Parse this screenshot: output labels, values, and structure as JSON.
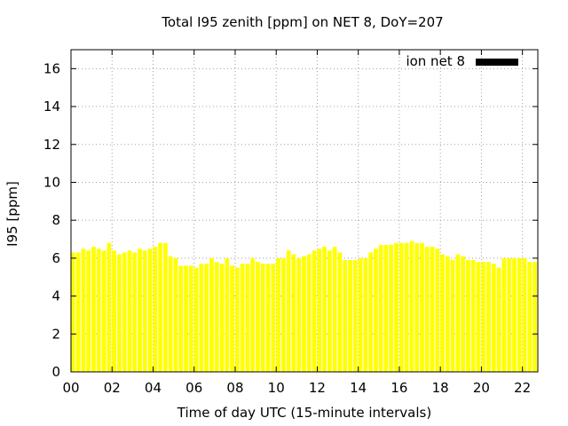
{
  "chart_data": {
    "type": "bar",
    "title": "Total I95 zenith [ppm] on NET 8, DoY=207",
    "xlabel": "Time of day UTC (15-minute intervals)",
    "ylabel": "I95 [ppm]",
    "xlim": [
      0,
      22.75
    ],
    "ylim": [
      0,
      17
    ],
    "xticks": [
      "00",
      "02",
      "04",
      "06",
      "08",
      "10",
      "12",
      "14",
      "16",
      "18",
      "20",
      "22"
    ],
    "yticks": [
      "0",
      "2",
      "4",
      "6",
      "8",
      "10",
      "12",
      "14",
      "16"
    ],
    "grid": true,
    "legend_position": "top-right",
    "bar_color": "#ffff00",
    "series": [
      {
        "name": "ion net 8",
        "legend_color": "#000000",
        "x": [
          0,
          0.25,
          0.5,
          0.75,
          1,
          1.25,
          1.5,
          1.75,
          2,
          2.25,
          2.5,
          2.75,
          3,
          3.25,
          3.5,
          3.75,
          4,
          4.25,
          4.5,
          4.75,
          5,
          5.25,
          5.5,
          5.75,
          6,
          6.25,
          6.5,
          6.75,
          7,
          7.25,
          7.5,
          7.75,
          8,
          8.25,
          8.5,
          8.75,
          9,
          9.25,
          9.5,
          9.75,
          10,
          10.25,
          10.5,
          10.75,
          11,
          11.25,
          11.5,
          11.75,
          12,
          12.25,
          12.5,
          12.75,
          13,
          13.25,
          13.5,
          13.75,
          14,
          14.25,
          14.5,
          14.75,
          15,
          15.25,
          15.5,
          15.75,
          16,
          16.25,
          16.5,
          16.75,
          17,
          17.25,
          17.5,
          17.75,
          18,
          18.25,
          18.5,
          18.75,
          19,
          19.25,
          19.5,
          19.75,
          20,
          20.25,
          20.5,
          20.75,
          21,
          21.25,
          21.5,
          21.75,
          22,
          22.25,
          22.5
        ],
        "values": [
          6.3,
          6.3,
          6.5,
          6.4,
          6.6,
          6.5,
          6.4,
          6.8,
          6.4,
          6.2,
          6.3,
          6.4,
          6.3,
          6.5,
          6.4,
          6.5,
          6.6,
          6.8,
          6.8,
          6.1,
          6.0,
          5.6,
          5.6,
          5.6,
          5.5,
          5.7,
          5.7,
          6.0,
          5.8,
          5.7,
          6.0,
          5.6,
          5.5,
          5.7,
          5.7,
          6.0,
          5.8,
          5.7,
          5.7,
          5.7,
          6.0,
          6.0,
          6.4,
          6.2,
          6.0,
          6.1,
          6.2,
          6.4,
          6.5,
          6.6,
          6.4,
          6.6,
          6.3,
          5.9,
          5.9,
          5.9,
          6.0,
          6.0,
          6.3,
          6.5,
          6.7,
          6.7,
          6.7,
          6.8,
          6.8,
          6.8,
          6.9,
          6.8,
          6.8,
          6.6,
          6.6,
          6.5,
          6.2,
          6.1,
          5.9,
          6.2,
          6.1,
          5.9,
          5.9,
          5.8,
          5.8,
          5.8,
          5.7,
          5.5,
          6.0,
          6.0,
          6.0,
          6.0,
          6.0,
          5.8,
          5.8
        ]
      }
    ]
  }
}
